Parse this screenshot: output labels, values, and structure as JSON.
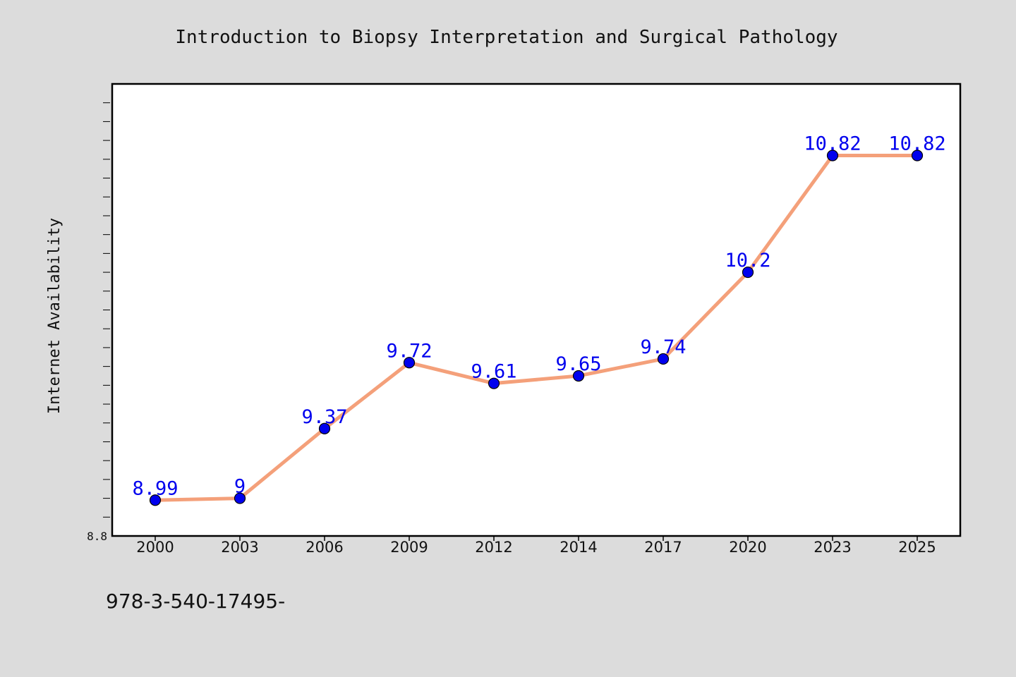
{
  "chart_data": {
    "type": "line",
    "title": "Introduction to Biopsy Interpretation and Surgical Pathology",
    "xlabel": "",
    "ylabel": "Internet Availability",
    "categories": [
      "2000",
      "2003",
      "2006",
      "2009",
      "2012",
      "2014",
      "2017",
      "2020",
      "2023",
      "2025"
    ],
    "series": [
      {
        "values": [
          8.99,
          9,
          9.37,
          9.72,
          9.61,
          9.65,
          9.74,
          10.2,
          10.82,
          10.82
        ],
        "labels": [
          "8.99",
          "9",
          "9.37",
          "9.72",
          "9.61",
          "9.65",
          "9.74",
          "10.2",
          "10.82",
          "10.82"
        ]
      }
    ],
    "ylim": [
      8.8,
      11.2
    ],
    "ytick_labels": [
      "8.8"
    ],
    "grid": false,
    "line_color": "#f4a07a",
    "marker_color": "#0000ee",
    "label_color": "#0000ee",
    "annotation": "978-3-540-17495-"
  }
}
